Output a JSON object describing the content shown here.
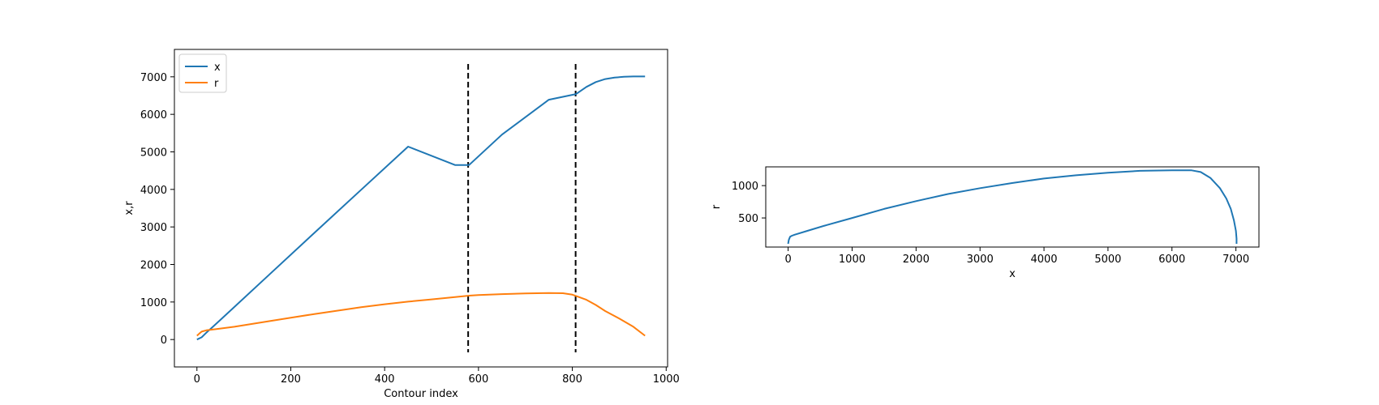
{
  "chart_data": [
    {
      "type": "line",
      "xlabel": "Contour index",
      "ylabel": "x,r",
      "xlim": [
        -48,
        1003
      ],
      "ylim": [
        -730,
        7730
      ],
      "xticks": [
        0,
        200,
        400,
        600,
        800,
        1000
      ],
      "yticks": [
        0,
        1000,
        2000,
        3000,
        4000,
        5000,
        6000,
        7000
      ],
      "legend": "top-left",
      "grid": false,
      "series": [
        {
          "name": "x",
          "color": "#1f77b4",
          "x": [
            0,
            10,
            20,
            40,
            80,
            150,
            250,
            350,
            450,
            550,
            580,
            650,
            750,
            808,
            830,
            850,
            870,
            890,
            910,
            930,
            955
          ],
          "y": [
            0,
            60,
            180,
            410,
            870,
            1680,
            2840,
            3990,
            5140,
            4650,
            4650,
            5460,
            6390,
            6540,
            6730,
            6860,
            6940,
            6980,
            7000,
            7010,
            7010
          ]
        },
        {
          "name": "r",
          "color": "#ff7f0e",
          "x": [
            0,
            5,
            10,
            20,
            40,
            80,
            150,
            200,
            250,
            300,
            350,
            400,
            450,
            500,
            550,
            580,
            600,
            650,
            700,
            750,
            780,
            800,
            808,
            830,
            850,
            870,
            900,
            930,
            955
          ],
          "y": [
            100,
            160,
            210,
            245,
            275,
            340,
            480,
            580,
            680,
            770,
            860,
            940,
            1010,
            1070,
            1130,
            1170,
            1185,
            1210,
            1230,
            1238,
            1235,
            1195,
            1160,
            1060,
            920,
            760,
            560,
            340,
            100
          ]
        }
      ],
      "vlines": [
        {
          "x": 578,
          "style": "dashed",
          "color": "#000000"
        },
        {
          "x": 807,
          "style": "dashed",
          "color": "#000000"
        }
      ]
    },
    {
      "type": "line",
      "xlabel": "x",
      "ylabel": "r",
      "xlim": [
        -350,
        7360
      ],
      "ylim": [
        50,
        1290
      ],
      "xticks": [
        0,
        1000,
        2000,
        3000,
        4000,
        5000,
        6000,
        7000
      ],
      "yticks": [
        500,
        1000
      ],
      "grid": false,
      "series": [
        {
          "name": "",
          "color": "#1f77b4",
          "x": [
            0,
            10,
            30,
            60,
            100,
            300,
            600,
            1000,
            1500,
            2000,
            2500,
            3000,
            3500,
            4000,
            4500,
            5000,
            5500,
            6000,
            6300,
            6450,
            6600,
            6750,
            6850,
            6920,
            6970,
            7000,
            7010,
            7010
          ],
          "y": [
            100,
            160,
            210,
            225,
            240,
            300,
            390,
            500,
            640,
            760,
            870,
            960,
            1040,
            1110,
            1160,
            1200,
            1228,
            1238,
            1238,
            1210,
            1120,
            960,
            800,
            640,
            460,
            300,
            180,
            100
          ]
        }
      ]
    }
  ]
}
